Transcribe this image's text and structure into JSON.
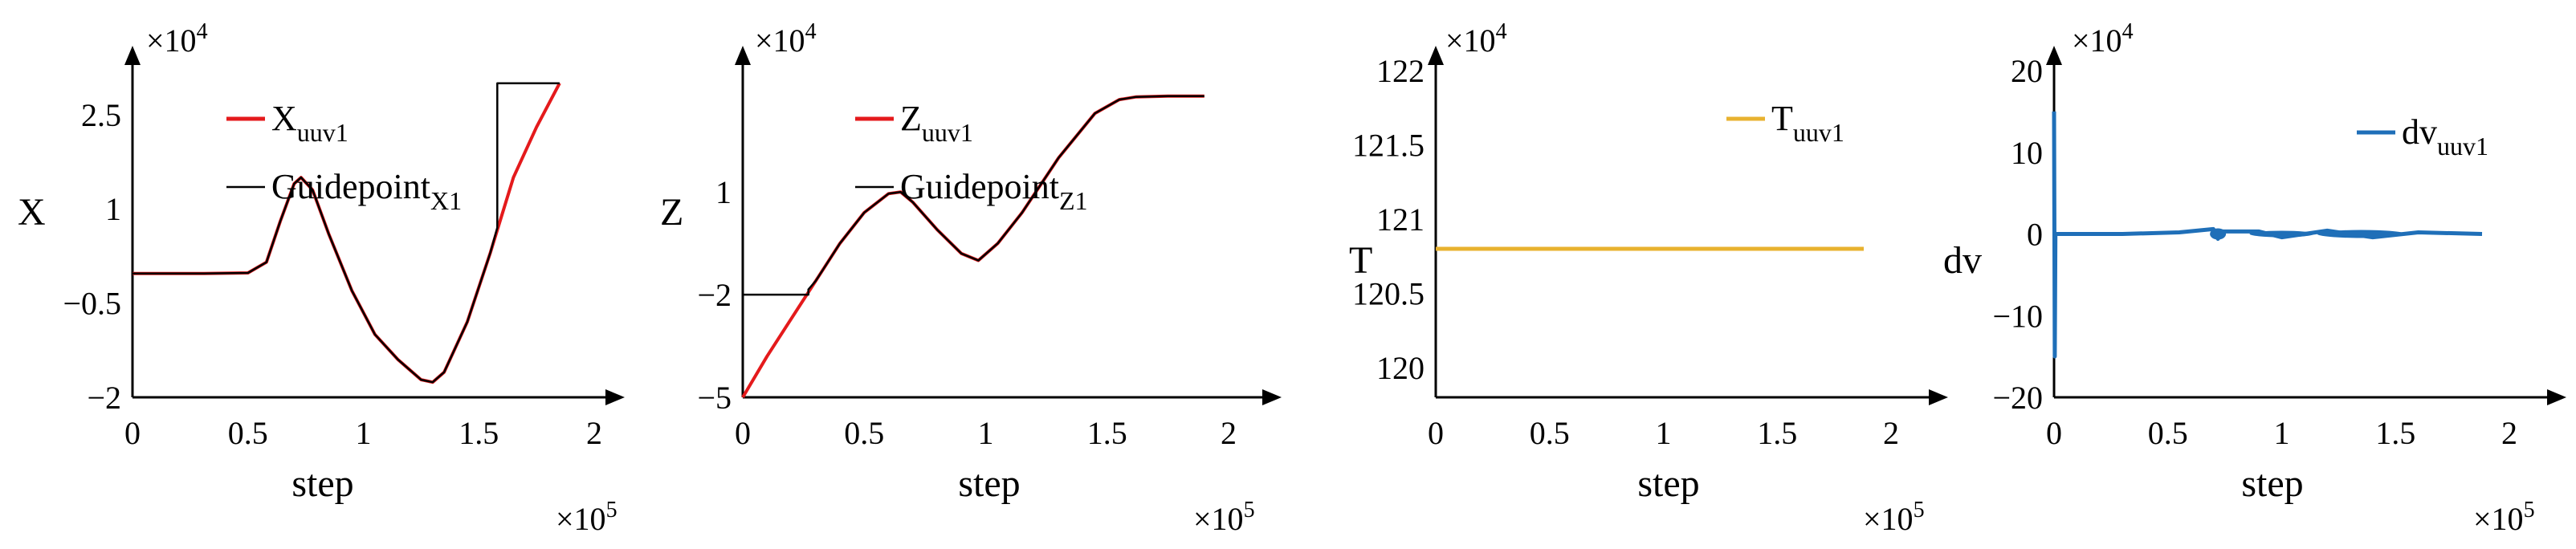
{
  "chart_data": [
    {
      "type": "line",
      "ylabel": "X",
      "xlabel": "step",
      "x_exponent": "×10^5",
      "y_exponent": "×10^4",
      "xlim": [
        0,
        2
      ],
      "ylim": [
        -2,
        3.2
      ],
      "x_ticks": [
        "0",
        "0.5",
        "1",
        "1.5",
        "2"
      ],
      "y_ticks": [
        "−2",
        "−0.5",
        "1",
        "2.5"
      ],
      "y_tick_values": [
        -2,
        -0.5,
        1,
        2.5
      ],
      "series": [
        {
          "name": "X",
          "name_sub": "uuv1",
          "color": "#e41a1c",
          "x": [
            0,
            0.3,
            0.5,
            0.58,
            0.64,
            0.7,
            0.73,
            0.78,
            0.85,
            0.95,
            1.05,
            1.15,
            1.25,
            1.3,
            1.35,
            1.45,
            1.55,
            1.6,
            1.65,
            1.75,
            1.85
          ],
          "y": [
            -0.03,
            -0.03,
            -0.02,
            0.15,
            0.8,
            1.4,
            1.5,
            1.3,
            0.6,
            -0.3,
            -1.0,
            -1.4,
            -1.72,
            -1.76,
            -1.6,
            -0.8,
            0.3,
            0.9,
            1.5,
            2.3,
            3.0
          ]
        },
        {
          "name": "Guidepoint",
          "name_sub": "X1",
          "color": "#000000",
          "x": [
            0,
            0.3,
            0.5,
            0.58,
            0.64,
            0.7,
            0.73,
            0.78,
            0.85,
            0.95,
            1.05,
            1.15,
            1.25,
            1.3,
            1.35,
            1.45,
            1.55,
            1.58,
            1.58,
            1.85
          ],
          "y": [
            -0.03,
            -0.03,
            -0.02,
            0.15,
            0.8,
            1.4,
            1.5,
            1.3,
            0.6,
            -0.3,
            -1.0,
            -1.4,
            -1.72,
            -1.76,
            -1.6,
            -0.8,
            0.3,
            0.7,
            3.0,
            3.0
          ]
        }
      ]
    },
    {
      "type": "line",
      "ylabel": "Z",
      "xlabel": "step",
      "x_exponent": "×10^5",
      "y_exponent": "×10^4",
      "xlim": [
        0,
        2
      ],
      "ylim": [
        -5,
        4.5
      ],
      "x_ticks": [
        "0",
        "0.5",
        "1",
        "1.5",
        "2"
      ],
      "y_ticks": [
        "−5",
        "−2",
        "1"
      ],
      "y_tick_values": [
        -5,
        -2,
        1
      ],
      "series": [
        {
          "name": "Z",
          "name_sub": "uuv1",
          "color": "#e41a1c",
          "x": [
            0,
            0.1,
            0.2,
            0.3,
            0.4,
            0.5,
            0.6,
            0.65,
            0.7,
            0.8,
            0.9,
            0.97,
            1.05,
            1.15,
            1.3,
            1.45,
            1.55,
            1.62,
            1.75,
            1.9
          ],
          "y": [
            -5,
            -3.8,
            -2.7,
            -1.6,
            -0.5,
            0.4,
            0.95,
            1.0,
            0.7,
            -0.1,
            -0.8,
            -1.0,
            -0.5,
            0.4,
            2.0,
            3.3,
            3.7,
            3.78,
            3.8,
            3.8
          ]
        },
        {
          "name": "Guidepoint",
          "name_sub": "Z1",
          "color": "#000000",
          "x": [
            0,
            0.27,
            0.27,
            0.3,
            0.4,
            0.5,
            0.6,
            0.65,
            0.7,
            0.8,
            0.9,
            0.97,
            1.05,
            1.15,
            1.3,
            1.45,
            1.55,
            1.62,
            1.75,
            1.9
          ],
          "y": [
            -2.0,
            -2.0,
            -1.85,
            -1.6,
            -0.5,
            0.4,
            0.95,
            1.0,
            0.7,
            -0.1,
            -0.8,
            -1.0,
            -0.5,
            0.4,
            2.0,
            3.3,
            3.7,
            3.78,
            3.8,
            3.8
          ]
        }
      ]
    },
    {
      "type": "line",
      "ylabel": "T",
      "xlabel": "step",
      "x_exponent": "×10^5",
      "y_exponent": "×10^4",
      "xlim": [
        0,
        2
      ],
      "ylim": [
        119.8,
        122
      ],
      "x_ticks": [
        "0",
        "0.5",
        "1",
        "1.5",
        "2"
      ],
      "y_ticks": [
        "120",
        "120.5",
        "121",
        "121.5",
        "122"
      ],
      "y_tick_values": [
        120,
        120.5,
        121,
        121.5,
        122
      ],
      "series": [
        {
          "name": "T",
          "name_sub": "uuv1",
          "color": "#e8b22f",
          "x": [
            0,
            1.88
          ],
          "y": [
            120.8,
            120.8
          ]
        }
      ]
    },
    {
      "type": "line",
      "ylabel": "dv",
      "xlabel": "step",
      "x_exponent": "×10^5",
      "y_exponent": "×10^4",
      "xlim": [
        0,
        2
      ],
      "ylim": [
        -20,
        20
      ],
      "x_ticks": [
        "0",
        "0.5",
        "1",
        "1.5",
        "2"
      ],
      "y_ticks": [
        "−20",
        "−10",
        "0",
        "10",
        "20"
      ],
      "y_tick_values": [
        -20,
        -10,
        0,
        10,
        20
      ],
      "series": [
        {
          "name": "dv",
          "name_sub": "uuv1",
          "color": "#1f6fb8",
          "x": [
            0,
            0.003,
            0.006,
            0.01,
            0.3,
            0.55,
            0.7,
            0.72,
            0.74,
            0.9,
            1.0,
            1.2,
            1.4,
            1.6,
            1.88
          ],
          "y": [
            15,
            -15,
            0,
            0,
            0,
            0.2,
            0.6,
            -0.6,
            0.3,
            0.3,
            -0.4,
            0.4,
            -0.4,
            0.2,
            0
          ]
        }
      ]
    }
  ]
}
